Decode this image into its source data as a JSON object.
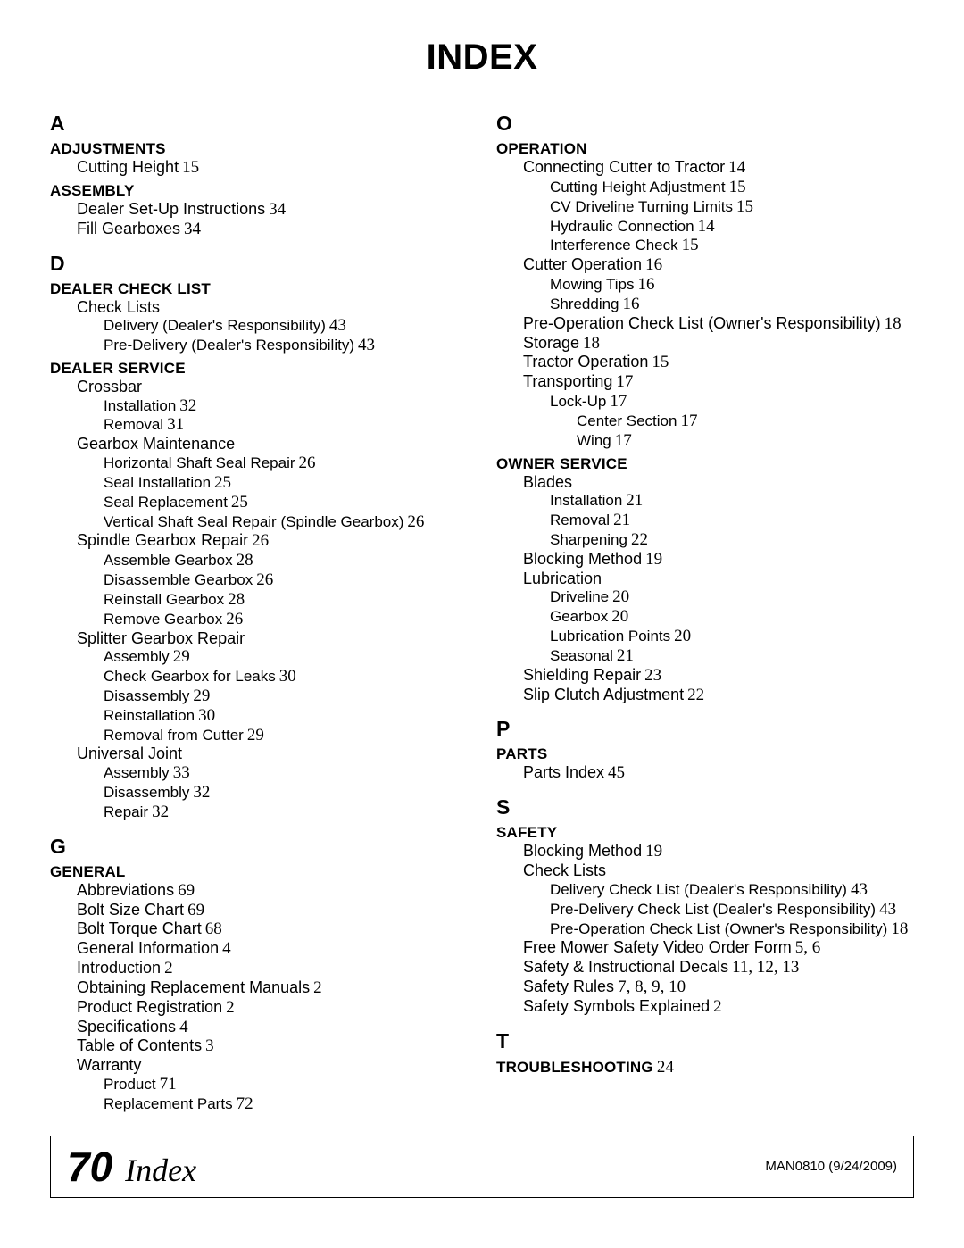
{
  "title": "INDEX",
  "footer": {
    "pageNum": "70",
    "label": "Index",
    "doc": "MAN0810  (9/24/2009)"
  },
  "col1": [
    {
      "t": "letter",
      "text": "A"
    },
    {
      "t": "section",
      "text": "ADJUSTMENTS"
    },
    {
      "t": "e0",
      "text": "Cutting Height",
      "page": "15"
    },
    {
      "t": "section",
      "text": "ASSEMBLY"
    },
    {
      "t": "e0",
      "text": "Dealer Set-Up Instructions",
      "page": "34"
    },
    {
      "t": "e0",
      "text": "Fill Gearboxes",
      "page": "34"
    },
    {
      "t": "letter",
      "text": "D"
    },
    {
      "t": "section",
      "text": "DEALER CHECK LIST"
    },
    {
      "t": "e0",
      "text": "Check Lists"
    },
    {
      "t": "e1",
      "text": "Delivery (Dealer's Responsibility)",
      "page": "43"
    },
    {
      "t": "e1",
      "text": "Pre-Delivery (Dealer's Responsibility)",
      "page": "43"
    },
    {
      "t": "section",
      "text": "DEALER SERVICE"
    },
    {
      "t": "e0",
      "text": "Crossbar"
    },
    {
      "t": "e1",
      "text": "Installation",
      "page": "32"
    },
    {
      "t": "e1",
      "text": "Removal",
      "page": "31"
    },
    {
      "t": "e0",
      "text": "Gearbox Maintenance"
    },
    {
      "t": "e1",
      "text": "Horizontal Shaft Seal Repair",
      "page": "26"
    },
    {
      "t": "e1",
      "text": "Seal Installation",
      "page": "25"
    },
    {
      "t": "e1",
      "text": "Seal Replacement",
      "page": "25"
    },
    {
      "t": "e1",
      "text": "Vertical Shaft Seal Repair (Spindle Gearbox)",
      "page": "26"
    },
    {
      "t": "e0",
      "text": "Spindle Gearbox Repair",
      "page": "26"
    },
    {
      "t": "e1",
      "text": "Assemble Gearbox",
      "page": "28"
    },
    {
      "t": "e1",
      "text": "Disassemble Gearbox",
      "page": "26"
    },
    {
      "t": "e1",
      "text": "Reinstall Gearbox",
      "page": "28"
    },
    {
      "t": "e1",
      "text": "Remove Gearbox",
      "page": "26"
    },
    {
      "t": "e0",
      "text": "Splitter Gearbox Repair"
    },
    {
      "t": "e1",
      "text": "Assembly",
      "page": "29"
    },
    {
      "t": "e1",
      "text": "Check Gearbox for Leaks",
      "page": "30"
    },
    {
      "t": "e1",
      "text": "Disassembly",
      "page": "29"
    },
    {
      "t": "e1",
      "text": "Reinstallation",
      "page": "30"
    },
    {
      "t": "e1",
      "text": "Removal from Cutter",
      "page": "29"
    },
    {
      "t": "e0",
      "text": "Universal Joint"
    },
    {
      "t": "e1",
      "text": "Assembly",
      "page": "33"
    },
    {
      "t": "e1",
      "text": "Disassembly",
      "page": "32"
    },
    {
      "t": "e1",
      "text": "Repair",
      "page": "32"
    },
    {
      "t": "letter",
      "text": "G"
    },
    {
      "t": "section",
      "text": "GENERAL"
    },
    {
      "t": "e0",
      "text": "Abbreviations",
      "page": "69"
    },
    {
      "t": "e0",
      "text": "Bolt Size Chart",
      "page": "69"
    },
    {
      "t": "e0",
      "text": "Bolt Torque Chart",
      "page": "68"
    },
    {
      "t": "e0",
      "text": "General Information",
      "page": "4"
    },
    {
      "t": "e0",
      "text": "Introduction",
      "page": "2"
    },
    {
      "t": "e0",
      "text": "Obtaining Replacement Manuals",
      "page": "2"
    },
    {
      "t": "e0",
      "text": "Product Registration",
      "page": "2"
    },
    {
      "t": "e0",
      "text": "Specifications",
      "page": "4"
    },
    {
      "t": "e0",
      "text": "Table of Contents",
      "page": "3"
    },
    {
      "t": "e0",
      "text": "Warranty"
    },
    {
      "t": "e1",
      "text": "Product",
      "page": "71"
    },
    {
      "t": "e1",
      "text": "Replacement Parts",
      "page": "72"
    }
  ],
  "col2": [
    {
      "t": "letter",
      "text": "O"
    },
    {
      "t": "section",
      "text": "OPERATION"
    },
    {
      "t": "e0",
      "text": "Connecting Cutter to Tractor",
      "page": "14"
    },
    {
      "t": "e1",
      "text": "Cutting Height Adjustment",
      "page": "15"
    },
    {
      "t": "e1",
      "text": "CV Driveline Turning Limits",
      "page": "15"
    },
    {
      "t": "e1",
      "text": "Hydraulic Connection",
      "page": "14"
    },
    {
      "t": "e1",
      "text": "Interference Check",
      "page": "15"
    },
    {
      "t": "e0",
      "text": "Cutter Operation",
      "page": "16"
    },
    {
      "t": "e1",
      "text": "Mowing Tips",
      "page": "16"
    },
    {
      "t": "e1",
      "text": "Shredding",
      "page": "16"
    },
    {
      "t": "e0",
      "text": "Pre-Operation Check List (Owner's Responsibility)",
      "page": "18"
    },
    {
      "t": "e0",
      "text": "Storage",
      "page": "18"
    },
    {
      "t": "e0",
      "text": "Tractor Operation",
      "page": "15"
    },
    {
      "t": "e0",
      "text": "Transporting",
      "page": "17"
    },
    {
      "t": "e1",
      "text": "Lock-Up",
      "page": "17"
    },
    {
      "t": "e2",
      "text": "Center Section",
      "page": "17"
    },
    {
      "t": "e2",
      "text": "Wing",
      "page": "17"
    },
    {
      "t": "section",
      "text": "OWNER SERVICE"
    },
    {
      "t": "e0",
      "text": "Blades"
    },
    {
      "t": "e1",
      "text": "Installation",
      "page": "21"
    },
    {
      "t": "e1",
      "text": "Removal",
      "page": "21"
    },
    {
      "t": "e1",
      "text": "Sharpening",
      "page": "22"
    },
    {
      "t": "e0",
      "text": "Blocking Method",
      "page": "19"
    },
    {
      "t": "e0",
      "text": "Lubrication"
    },
    {
      "t": "e1",
      "text": "Driveline",
      "page": "20"
    },
    {
      "t": "e1",
      "text": "Gearbox",
      "page": "20"
    },
    {
      "t": "e1",
      "text": "Lubrication Points",
      "page": "20"
    },
    {
      "t": "e1",
      "text": "Seasonal",
      "page": "21"
    },
    {
      "t": "e0",
      "text": "Shielding Repair",
      "page": "23"
    },
    {
      "t": "e0",
      "text": "Slip Clutch Adjustment",
      "page": "22"
    },
    {
      "t": "letter",
      "text": "P"
    },
    {
      "t": "section",
      "text": "PARTS"
    },
    {
      "t": "e0",
      "text": "Parts Index",
      "page": "45"
    },
    {
      "t": "letter",
      "text": "S"
    },
    {
      "t": "section",
      "text": "SAFETY"
    },
    {
      "t": "e0",
      "text": "Blocking Method",
      "page": "19"
    },
    {
      "t": "e0",
      "text": "Check Lists"
    },
    {
      "t": "e1",
      "text": "Delivery Check List (Dealer's Responsibility)",
      "page": "43"
    },
    {
      "t": "e1",
      "text": "Pre-Delivery Check List (Dealer's Responsibility)",
      "page": "43"
    },
    {
      "t": "e1",
      "text": "Pre-Operation Check List (Owner's Responsibility)",
      "page": "18"
    },
    {
      "t": "e0",
      "text": "Free Mower Safety Video Order Form",
      "page": "5, 6"
    },
    {
      "t": "e0",
      "text": "Safety & Instructional Decals",
      "page": "11, 12, 13"
    },
    {
      "t": "e0",
      "text": "Safety Rules",
      "page": "7, 8, 9, 10"
    },
    {
      "t": "e0",
      "text": "Safety Symbols Explained",
      "page": "2"
    },
    {
      "t": "letter",
      "text": "T"
    },
    {
      "t": "section",
      "text": "TROUBLESHOOTING",
      "page": "24"
    }
  ]
}
